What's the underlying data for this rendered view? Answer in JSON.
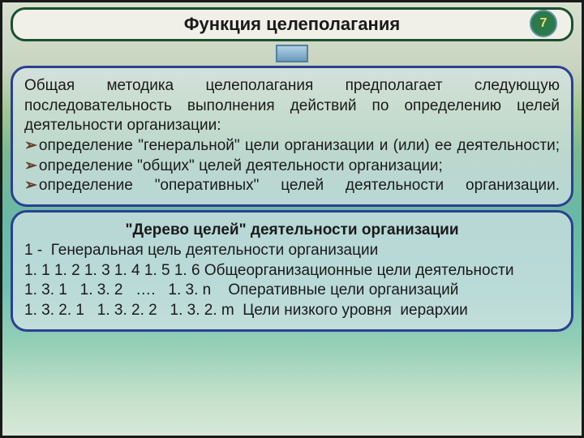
{
  "colors": {
    "border_dark": "#1a1a1a",
    "title_border": "#1a5030",
    "title_bg": "#f0f0e8",
    "badge_bg": "#2a7a4a",
    "badge_border": "#6090a0",
    "badge_text": "#ffd86b",
    "box_border": "#2a4090",
    "box_bg": "rgba(216,230,232,0.7)",
    "bullet": "#604028"
  },
  "title": "Функция целеполагания",
  "page_number": "7",
  "box1": {
    "intro": "Общая методика целеполагания предполагает следующую последовательность выполнения действий по определению целей деятельности организации:",
    "bullets": [
      "определение \"генеральной\" цели организации и (или) ее деятельности;",
      "определение \"общих\" целей деятельности организации;",
      "определение \"оперативных\" целей деятельности организации."
    ]
  },
  "box2": {
    "tree_title": "\"Дерево целей\" деятельности организации",
    "lines": [
      "1 -  Генеральная цель деятельности организации",
      "1. 1   1. 2   1. 3   1. 4   1. 5   1. 6    Общеорганизационные цели деятельности",
      "1. 3. 1   1. 3. 2   ….   1. 3. n    Оперативные цели организаций",
      "1. 3. 2. 1   1. 3. 2. 2   1. 3. 2. m  Цели низкого уровня  иерархии"
    ]
  }
}
